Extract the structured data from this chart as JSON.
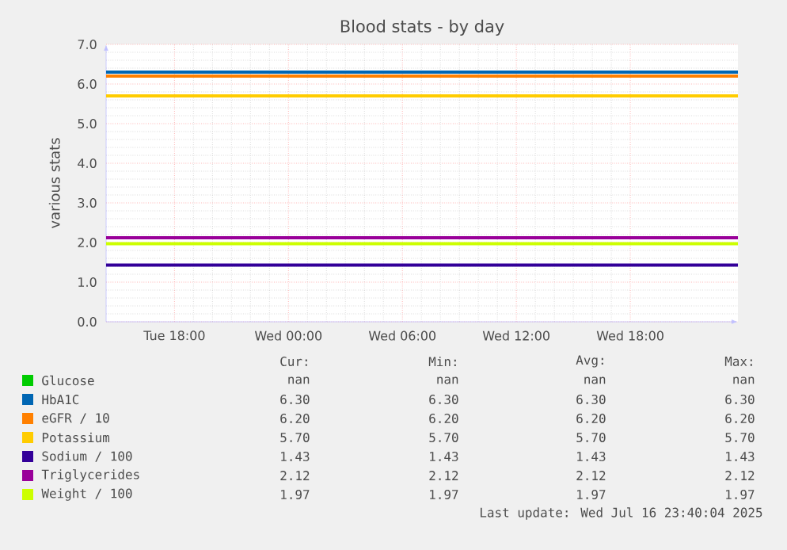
{
  "chart_data": {
    "type": "line",
    "title": "Blood stats - by day",
    "ylabel": "various stats",
    "x": [
      "2025-07-15T14:24",
      "2025-07-16T23:40"
    ],
    "xlim": [
      "2025-07-15T14:24",
      "2025-07-16T23:40"
    ],
    "xticks": [
      {
        "value": "2025-07-15T18:00",
        "label": "Tue 18:00"
      },
      {
        "value": "2025-07-16T00:00",
        "label": "Wed 00:00"
      },
      {
        "value": "2025-07-16T06:00",
        "label": "Wed 06:00"
      },
      {
        "value": "2025-07-16T12:00",
        "label": "Wed 12:00"
      },
      {
        "value": "2025-07-16T18:00",
        "label": "Wed 18:00"
      }
    ],
    "ylim": [
      0,
      7
    ],
    "yticks": [
      {
        "value": 0,
        "label": "0.0"
      },
      {
        "value": 1,
        "label": "1.0"
      },
      {
        "value": 2,
        "label": "2.0"
      },
      {
        "value": 3,
        "label": "3.0"
      },
      {
        "value": 4,
        "label": "4.0"
      },
      {
        "value": 5,
        "label": "5.0"
      },
      {
        "value": 6,
        "label": "6.0"
      },
      {
        "value": 7,
        "label": "7.0"
      }
    ],
    "grid": true,
    "legend": "bottom",
    "marker": "none",
    "line_style": "solid",
    "series": [
      {
        "name": "Glucose",
        "color": "#00cc00",
        "values": [
          null,
          null
        ]
      },
      {
        "name": "HbA1C",
        "color": "#0066b3",
        "values": [
          6.3,
          6.3
        ]
      },
      {
        "name": "eGFR / 10",
        "color": "#ff8000",
        "values": [
          6.2,
          6.2
        ]
      },
      {
        "name": "Potassium",
        "color": "#ffcc00",
        "values": [
          5.7,
          5.7
        ]
      },
      {
        "name": "Sodium / 100",
        "color": "#330099",
        "values": [
          1.43,
          1.43
        ]
      },
      {
        "name": "Triglycerides",
        "color": "#990099",
        "values": [
          2.12,
          2.12
        ]
      },
      {
        "name": "Weight / 100",
        "color": "#ccff00",
        "values": [
          1.97,
          1.97
        ]
      }
    ],
    "annotations": [
      "Cur:",
      "Min:",
      "Avg:",
      "Max:",
      "nan",
      "nan",
      "nan",
      "nan",
      "6.30",
      "6.30",
      "6.30",
      "6.30",
      "6.20",
      "6.20",
      "6.20",
      "6.20",
      "5.70",
      "5.70",
      "5.70",
      "5.70",
      "1.43",
      "1.43",
      "1.43",
      "1.43",
      "2.12",
      "2.12",
      "2.12",
      "2.12",
      "1.97",
      "1.97",
      "1.97",
      "1.97",
      "Last update: Wed Jul 16 23:40:04 2025"
    ]
  }
}
